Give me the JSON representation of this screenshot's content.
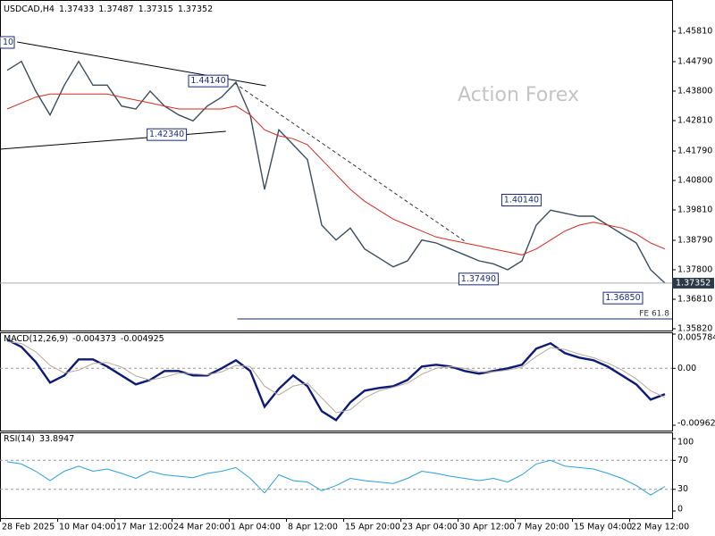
{
  "chart_data": [
    {
      "type": "line",
      "symbol": "USDCAD,H4",
      "open": 1.37433,
      "high": 1.37487,
      "low": 1.37315,
      "watermark": "Action Forex",
      "ylim": [
        1.3576,
        1.468
      ],
      "yticks": [
        {
          "value": 1.4581,
          "label": "1.45810"
        },
        {
          "value": 1.4479,
          "label": "1.44790"
        },
        {
          "value": 1.438,
          "label": "1.43800"
        },
        {
          "value": 1.4281,
          "label": "1.42810"
        },
        {
          "value": 1.4179,
          "label": "1.41790"
        },
        {
          "value": 1.408,
          "label": "1.40800"
        },
        {
          "value": 1.3981,
          "label": "1.39810"
        },
        {
          "value": 1.3879,
          "label": "1.38790"
        },
        {
          "value": 1.378,
          "label": "1.37800"
        },
        {
          "value": 1.3681,
          "label": "1.36810"
        },
        {
          "value": 1.3582,
          "label": "1.35820"
        }
      ],
      "series": [
        {
          "color": "#3b4d5c",
          "values": [
            1.445,
            1.448,
            1.438,
            1.43,
            1.44,
            1.448,
            1.44,
            1.44,
            1.433,
            1.432,
            1.438,
            1.433,
            1.43,
            1.428,
            1.433,
            1.436,
            1.441,
            1.43,
            1.405,
            1.425,
            1.42,
            1.415,
            1.393,
            1.388,
            1.392,
            1.385,
            1.382,
            1.379,
            1.381,
            1.388,
            1.387,
            1.385,
            1.383,
            1.381,
            1.38,
            1.378,
            1.381,
            1.393,
            1.398,
            1.397,
            1.396,
            1.396,
            1.393,
            1.39,
            1.387,
            1.378,
            1.37352
          ]
        },
        {
          "color": "#d42a20",
          "values": [
            1.432,
            1.434,
            1.436,
            1.437,
            1.437,
            1.437,
            1.437,
            1.437,
            1.436,
            1.435,
            1.434,
            1.433,
            1.432,
            1.432,
            1.432,
            1.432,
            1.433,
            1.43,
            1.425,
            1.423,
            1.422,
            1.42,
            1.415,
            1.41,
            1.405,
            1.401,
            1.398,
            1.395,
            1.393,
            1.391,
            1.389,
            1.388,
            1.387,
            1.386,
            1.385,
            1.384,
            1.383,
            1.385,
            1.388,
            1.391,
            1.393,
            1.394,
            1.393,
            1.392,
            1.39,
            1.387,
            1.385
          ]
        }
      ],
      "annotations": [
        {
          "value": 1.4414,
          "label": "1.44140",
          "x": 16
        },
        {
          "value": 1.4234,
          "label": "1.42340",
          "x": 13.1
        },
        {
          "value": 1.4014,
          "label": "1.40140",
          "x": 37.9
        },
        {
          "value": 1.3749,
          "label": "1.37490",
          "x": 34.9
        },
        {
          "value": 1.3685,
          "label": "1.36850",
          "x": 45
        }
      ],
      "clipped_label": "10",
      "fe_level": {
        "value": 1.3615,
        "label": "FE 61.8",
        "x": 16.6
      },
      "trendlines": [
        {
          "dashed": false,
          "x": [
            1.2,
            18.6
          ],
          "values": [
            1.4545,
            1.4398
          ]
        },
        {
          "dashed": false,
          "x": [
            0,
            15.8
          ],
          "values": [
            1.4185,
            1.4245
          ]
        },
        {
          "dashed": true,
          "x": [
            16.4,
            32.5
          ],
          "values": [
            1.4407,
            1.3876
          ]
        }
      ]
    },
    {
      "type": "line",
      "title": "MACD(12,26,9)",
      "ylim": [
        -0.009621,
        0.005784
      ],
      "yticks": [
        0.005784,
        {
          "value": 0,
          "label": "0.00"
        },
        -0.009621
      ],
      "series": [
        {
          "color": "#0c1a78",
          "values": [
            0.00483,
            0.00363,
            0.00106,
            -0.00242,
            -0.00121,
            0.00151,
            0.00151,
            0.0003,
            -0.00121,
            -0.00272,
            -0.00196,
            -0.00045,
            -0.00045,
            -0.00121,
            -0.00121,
            0,
            0.00136,
            -0.00045,
            -0.0065,
            -0.00347,
            -0.00121,
            -0.00302,
            -0.00725,
            -0.00876,
            -0.00574,
            -0.00378,
            -0.00332,
            -0.00302,
            -0.00196,
            0.0003,
            0.0006,
            0.0003,
            -0.00045,
            -0.00091,
            -0.00045,
            0,
            0.0006,
            0.00332,
            0.00423,
            0.00257,
            0.00181,
            0.00136,
            0.0003,
            -0.00121,
            -0.00272,
            -0.00529,
            -0.004373
          ]
        },
        {
          "color": "#b8aa9a",
          "values": [
            0.0045,
            0.0042,
            0.0028,
            0.0005,
            -0.0008,
            -0.0003,
            0.0008,
            0.001,
            0.0002,
            -0.0013,
            -0.002,
            -0.0015,
            -0.0008,
            -0.0009,
            -0.0011,
            -0.0006,
            0.0005,
            0.0003,
            -0.003,
            -0.0045,
            -0.003,
            -0.0025,
            -0.005,
            -0.0075,
            -0.007,
            -0.005,
            -0.0038,
            -0.0032,
            -0.0025,
            -0.001,
            0.0,
            0.0003,
            0.0,
            -0.0006,
            -0.0006,
            -0.0003,
            0.0002,
            0.002,
            0.0035,
            0.0032,
            0.0024,
            0.0018,
            0.0009,
            -0.0003,
            -0.0018,
            -0.0038,
            -0.004925
          ]
        }
      ]
    },
    {
      "type": "line",
      "title": "RSI(14)",
      "ylim": [
        0,
        100
      ],
      "yticks": [
        100,
        70,
        30,
        0
      ],
      "levels": [
        70,
        30
      ],
      "series": [
        {
          "color": "#2a9fe0",
          "values": [
            68,
            65,
            55,
            42,
            55,
            62,
            55,
            58,
            52,
            45,
            55,
            50,
            48,
            46,
            52,
            55,
            60,
            45,
            25,
            50,
            42,
            40,
            28,
            35,
            45,
            42,
            40,
            38,
            45,
            55,
            52,
            48,
            45,
            42,
            45,
            40,
            50,
            65,
            70,
            62,
            60,
            58,
            52,
            45,
            35,
            22,
            33.8947
          ]
        }
      ],
      "xlim": [
        0,
        47
      ],
      "xticks": [
        {
          "value": 0,
          "label": "28 Feb 2025"
        },
        {
          "value": 4,
          "label": "10 Mar 04:00"
        },
        {
          "value": 8,
          "label": "17 Mar 12:00"
        },
        {
          "value": 12,
          "label": "24 Mar 20:00"
        },
        {
          "value": 16,
          "label": "1 Apr 04:00"
        },
        {
          "value": 20,
          "label": "8 Apr 12:00"
        },
        {
          "value": 24,
          "label": "15 Apr 20:00"
        },
        {
          "value": 28,
          "label": "23 Apr 04:00"
        },
        {
          "value": 32,
          "label": "30 Apr 12:00"
        },
        {
          "value": 36,
          "label": "7 May 20:00"
        },
        {
          "value": 40,
          "label": "15 May 04:00"
        },
        {
          "value": 44,
          "label": "22 May 12:00"
        }
      ]
    }
  ]
}
